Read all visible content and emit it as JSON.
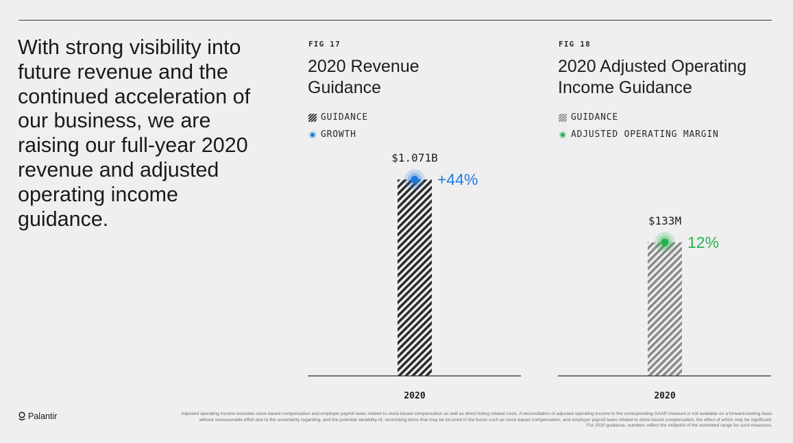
{
  "headline": "With strong visibility into future revenue and the continued acceleration of our business, we are raising our full-year 2020 revenue and adjusted operating income guidance.",
  "colors": {
    "background": "#efefef",
    "dark_hatch": "#2b2b2b",
    "light_hatch": "#8a8a8a",
    "growth_blue": "#1f7ae0",
    "margin_green": "#27b04b"
  },
  "logo": {
    "text": "Palantir",
    "icon": "palantir-logo-icon"
  },
  "footnote": {
    "line1": "Adjusted operating income excludes stock-based compensation and employer payroll taxes related to stock-based compensation as well as direct listing related costs. A reconciliation of adjusted operating income to the corresponding GAAP measure is not available on a forward-looking basis",
    "line2": "without unreasonable effort due to the uncertainty regarding, and the potential variability of, reconciling items that may be incurred in the future such as stock-based compensation, and employer payroll taxes related to stock-based compensation, the effect of which may be significant.",
    "line3": "For 2020 guidance, numbers reflect the midpoint of the estimated range for such measures."
  },
  "figures": [
    {
      "label": "FIG 17",
      "title_line1": "2020 Revenue",
      "title_line2": "Guidance",
      "legend": [
        {
          "text": "GUIDANCE",
          "icon": "hatch-dark-icon"
        },
        {
          "text": "GROWTH",
          "icon": "blue-dot-icon"
        }
      ]
    },
    {
      "label": "FIG 18",
      "title_line1": "2020 Adjusted Operating",
      "title_line2": "Income Guidance",
      "legend": [
        {
          "text": "GUIDANCE",
          "icon": "hatch-light-icon"
        },
        {
          "text": "ADJUSTED OPERATING MARGIN",
          "icon": "green-dot-icon"
        }
      ]
    }
  ],
  "chart_data": [
    {
      "type": "bar",
      "title": "2020 Revenue Guidance",
      "categories": [
        "2020"
      ],
      "values": [
        1071
      ],
      "unit": "$M",
      "value_label": "$1.071B",
      "annotation": {
        "label": "+44%",
        "series": "GROWTH",
        "value": 44
      },
      "ylim": [
        0,
        1150
      ],
      "hatch": "dark",
      "xlabel": "",
      "ylabel": ""
    },
    {
      "type": "bar",
      "title": "2020 Adjusted Operating Income Guidance",
      "categories": [
        "2020"
      ],
      "values": [
        133
      ],
      "unit": "$M",
      "value_label": "$133M",
      "annotation": {
        "label": "12%",
        "series": "ADJUSTED OPERATING MARGIN",
        "value": 12
      },
      "ylim": [
        0,
        210
      ],
      "hatch": "light",
      "xlabel": "",
      "ylabel": ""
    }
  ]
}
